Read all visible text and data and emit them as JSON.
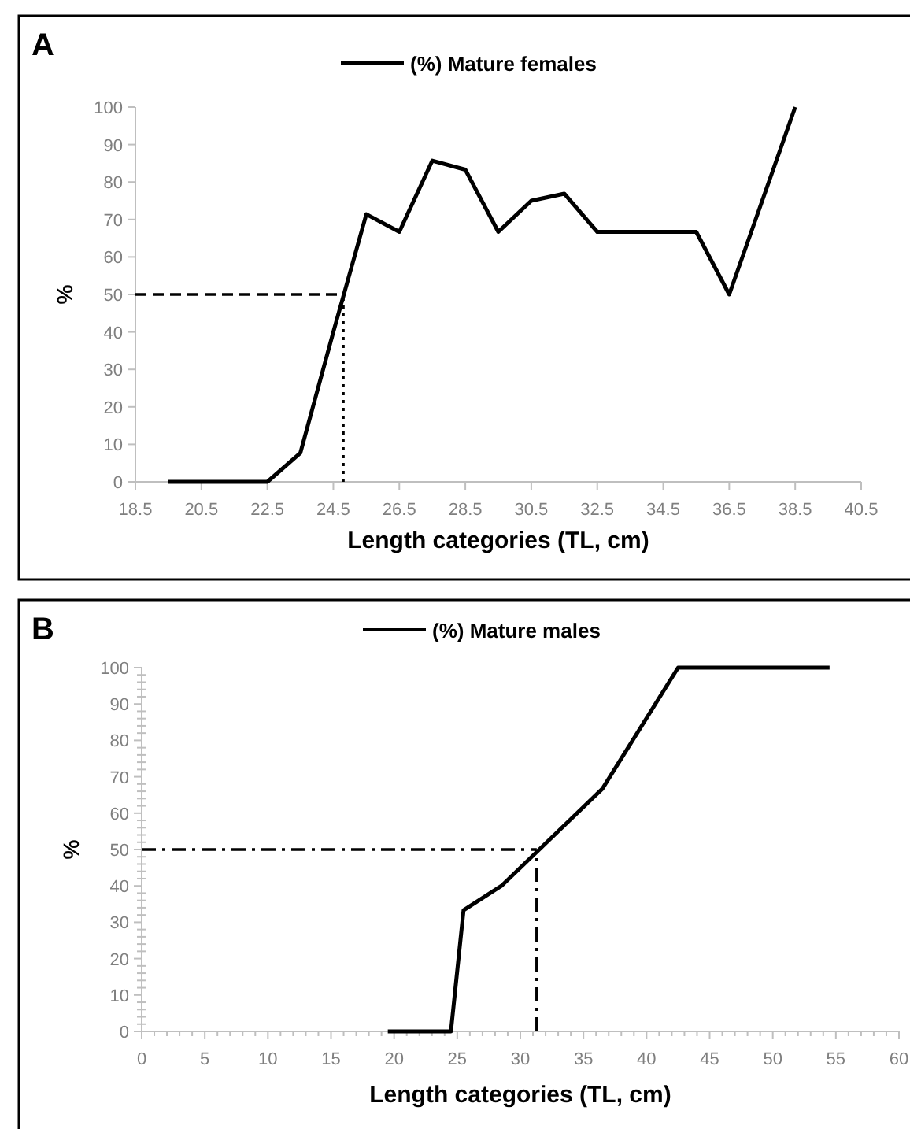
{
  "chart_data": [
    {
      "type": "line",
      "title": "A",
      "xlabel": "Length categories (TL, cm)",
      "ylabel": "%",
      "legend": "top",
      "xlim": [
        18.5,
        40.5
      ],
      "xticks": [
        18.5,
        20.5,
        22.5,
        24.5,
        26.5,
        28.5,
        30.5,
        32.5,
        34.5,
        36.5,
        38.5,
        40.5
      ],
      "ylim": [
        0,
        100
      ],
      "yticks": [
        0,
        10,
        20,
        30,
        40,
        50,
        60,
        70,
        80,
        90,
        100
      ],
      "series": [
        {
          "name": "(%) Mature females",
          "color": "#000000",
          "x": [
            19.5,
            20.5,
            21.5,
            22.5,
            23.5,
            24.5,
            25.5,
            26.5,
            27.5,
            28.5,
            29.5,
            30.5,
            31.5,
            32.5,
            33.5,
            34.5,
            35.5,
            36.5,
            37.5,
            38.5
          ],
          "values": [
            0,
            0,
            0,
            0,
            7.7,
            40,
            71.4,
            66.7,
            85.7,
            83.3,
            66.7,
            75,
            76.9,
            66.7,
            66.7,
            66.7,
            66.7,
            50,
            75,
            100
          ]
        },
        {
          "color": "#000000",
          "line_style": "dashed",
          "x": [
            18.5,
            24.8
          ],
          "values": [
            50,
            50
          ]
        },
        {
          "color": "#000000",
          "line_style": "dotted",
          "x": [
            24.8,
            24.8
          ],
          "values": [
            0,
            50
          ]
        }
      ]
    },
    {
      "type": "line",
      "title": "B",
      "xlabel": "Length categories (TL, cm)",
      "ylabel": "%",
      "legend": "top",
      "xlim": [
        0,
        60
      ],
      "xticks": [
        0,
        {
          "value": 1,
          "label": null
        },
        {
          "value": 2,
          "label": null
        },
        {
          "value": 3,
          "label": null
        },
        {
          "value": 4,
          "label": null
        },
        5,
        {
          "value": 6,
          "label": null
        },
        {
          "value": 7,
          "label": null
        },
        {
          "value": 8,
          "label": null
        },
        {
          "value": 9,
          "label": null
        },
        10,
        {
          "value": 11,
          "label": null
        },
        {
          "value": 12,
          "label": null
        },
        {
          "value": 13,
          "label": null
        },
        {
          "value": 14,
          "label": null
        },
        15,
        {
          "value": 16,
          "label": null
        },
        {
          "value": 17,
          "label": null
        },
        {
          "value": 18,
          "label": null
        },
        {
          "value": 19,
          "label": null
        },
        20,
        {
          "value": 21,
          "label": null
        },
        {
          "value": 22,
          "label": null
        },
        {
          "value": 23,
          "label": null
        },
        {
          "value": 24,
          "label": null
        },
        25,
        {
          "value": 26,
          "label": null
        },
        {
          "value": 27,
          "label": null
        },
        {
          "value": 28,
          "label": null
        },
        {
          "value": 29,
          "label": null
        },
        30,
        {
          "value": 31,
          "label": null
        },
        {
          "value": 32,
          "label": null
        },
        {
          "value": 33,
          "label": null
        },
        {
          "value": 34,
          "label": null
        },
        35,
        {
          "value": 36,
          "label": null
        },
        {
          "value": 37,
          "label": null
        },
        {
          "value": 38,
          "label": null
        },
        {
          "value": 39,
          "label": null
        },
        40,
        {
          "value": 41,
          "label": null
        },
        {
          "value": 42,
          "label": null
        },
        {
          "value": 43,
          "label": null
        },
        {
          "value": 44,
          "label": null
        },
        45,
        {
          "value": 46,
          "label": null
        },
        {
          "value": 47,
          "label": null
        },
        {
          "value": 48,
          "label": null
        },
        {
          "value": 49,
          "label": null
        },
        50,
        {
          "value": 51,
          "label": null
        },
        {
          "value": 52,
          "label": null
        },
        {
          "value": 53,
          "label": null
        },
        {
          "value": 54,
          "label": null
        },
        55,
        {
          "value": 56,
          "label": null
        },
        {
          "value": 57,
          "label": null
        },
        {
          "value": 58,
          "label": null
        },
        {
          "value": 59,
          "label": null
        },
        60
      ],
      "ylim": [
        0,
        100
      ],
      "yticks": [
        0,
        {
          "value": 2,
          "label": null
        },
        {
          "value": 4,
          "label": null
        },
        {
          "value": 6,
          "label": null
        },
        {
          "value": 8,
          "label": null
        },
        10,
        {
          "value": 12,
          "label": null
        },
        {
          "value": 14,
          "label": null
        },
        {
          "value": 16,
          "label": null
        },
        {
          "value": 18,
          "label": null
        },
        20,
        {
          "value": 22,
          "label": null
        },
        {
          "value": 24,
          "label": null
        },
        {
          "value": 26,
          "label": null
        },
        {
          "value": 28,
          "label": null
        },
        30,
        {
          "value": 32,
          "label": null
        },
        {
          "value": 34,
          "label": null
        },
        {
          "value": 36,
          "label": null
        },
        {
          "value": 38,
          "label": null
        },
        40,
        {
          "value": 42,
          "label": null
        },
        {
          "value": 44,
          "label": null
        },
        {
          "value": 46,
          "label": null
        },
        {
          "value": 48,
          "label": null
        },
        50,
        {
          "value": 52,
          "label": null
        },
        {
          "value": 54,
          "label": null
        },
        {
          "value": 56,
          "label": null
        },
        {
          "value": 58,
          "label": null
        },
        60,
        {
          "value": 62,
          "label": null
        },
        {
          "value": 64,
          "label": null
        },
        {
          "value": 66,
          "label": null
        },
        {
          "value": 68,
          "label": null
        },
        70,
        {
          "value": 72,
          "label": null
        },
        {
          "value": 74,
          "label": null
        },
        {
          "value": 76,
          "label": null
        },
        {
          "value": 78,
          "label": null
        },
        80,
        {
          "value": 82,
          "label": null
        },
        {
          "value": 84,
          "label": null
        },
        {
          "value": 86,
          "label": null
        },
        {
          "value": 88,
          "label": null
        },
        90,
        {
          "value": 92,
          "label": null
        },
        {
          "value": 94,
          "label": null
        },
        {
          "value": 96,
          "label": null
        },
        {
          "value": 98,
          "label": null
        },
        100
      ],
      "series": [
        {
          "name": "(%) Mature males",
          "color": "#000000",
          "x": [
            19.5,
            24.5,
            25.5,
            28.5,
            31.5,
            36.5,
            42.5,
            54.5
          ],
          "values": [
            0,
            0,
            33.3,
            40,
            50,
            66.7,
            100,
            100
          ]
        },
        {
          "color": "#000000",
          "line_style": "dashdot",
          "x": [
            0,
            31.3
          ],
          "values": [
            50,
            50
          ]
        },
        {
          "color": "#000000",
          "line_style": "dashdot",
          "x": [
            31.3,
            31.3
          ],
          "values": [
            0,
            50
          ]
        }
      ]
    }
  ]
}
